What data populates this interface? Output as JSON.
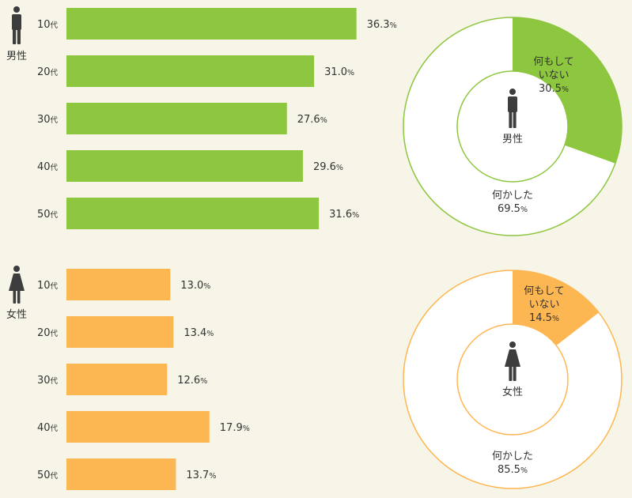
{
  "chart_data": [
    {
      "type": "bar",
      "group": "男性",
      "categories": [
        "10",
        "20",
        "30",
        "40",
        "50"
      ],
      "category_suffix": "代",
      "values": [
        36.3,
        31.0,
        27.6,
        29.6,
        31.6
      ],
      "value_labels": [
        "36.3",
        "31.0",
        "27.6",
        "29.6",
        "31.6"
      ],
      "unit": "%",
      "color": "#8dc63f",
      "xlim": [
        0,
        40
      ]
    },
    {
      "type": "bar",
      "group": "女性",
      "categories": [
        "10",
        "20",
        "30",
        "40",
        "50"
      ],
      "category_suffix": "代",
      "values": [
        13.0,
        13.4,
        12.6,
        17.9,
        13.7
      ],
      "value_labels": [
        "13.0",
        "13.4",
        "12.6",
        "17.9",
        "13.7"
      ],
      "unit": "%",
      "color": "#fdb752",
      "xlim": [
        0,
        40
      ]
    },
    {
      "type": "pie",
      "group": "男性",
      "center_label": "男性",
      "slices": [
        {
          "label_lines": [
            "何もして",
            "いない"
          ],
          "value": 30.5,
          "value_label": "30.5",
          "color": "#8dc63f"
        },
        {
          "label_lines": [
            "何かした"
          ],
          "value": 69.5,
          "value_label": "69.5",
          "color": "#ffffff"
        }
      ],
      "unit": "%",
      "outline_color": "#8dc63f"
    },
    {
      "type": "pie",
      "group": "女性",
      "center_label": "女性",
      "slices": [
        {
          "label_lines": [
            "何もして",
            "いない"
          ],
          "value": 14.5,
          "value_label": "14.5",
          "color": "#fdb752"
        },
        {
          "label_lines": [
            "何かした"
          ],
          "value": 85.5,
          "value_label": "85.5",
          "color": "#ffffff"
        }
      ],
      "unit": "%",
      "outline_color": "#fdb752"
    }
  ],
  "icons": {
    "male": "male-figure-icon",
    "female": "female-figure-icon"
  },
  "colors": {
    "background": "#f7f5e8",
    "icon": "#3d3d3d"
  }
}
